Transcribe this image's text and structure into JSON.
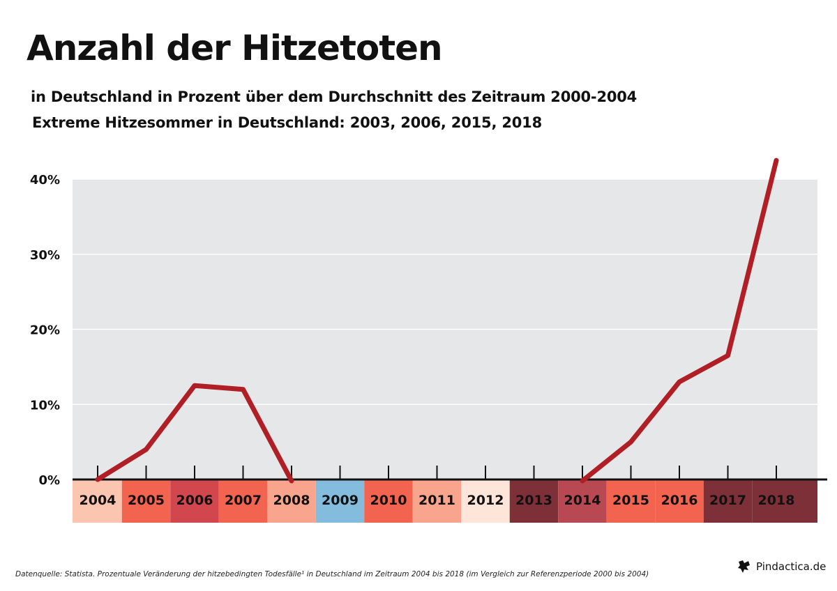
{
  "header": {
    "title": "Anzahl der Hitzetoten",
    "subtitle1": "in Deutschland in Prozent über dem Durchschnitt des Zeitraum 2000-2004",
    "subtitle2": "Extreme Hitzesommer in Deutschland: 2003, 2006, 2015, 2018"
  },
  "chart_data": {
    "type": "line",
    "x": [
      "2004",
      "2005",
      "2006",
      "2007",
      "2008",
      "2009",
      "2010",
      "2011",
      "2012",
      "2013",
      "2014",
      "2015",
      "2016",
      "2017",
      "2018"
    ],
    "series": [
      {
        "values": [
          0,
          4,
          12.5,
          12,
          -1,
          null,
          null,
          null,
          null,
          null,
          -1,
          5,
          13,
          16.5,
          42.5
        ]
      }
    ],
    "ylim": [
      0,
      40
    ],
    "yticks": [
      "0%",
      "10%",
      "20%",
      "30%",
      "40%"
    ],
    "grid": true,
    "line_color": "#B01F25",
    "plot_background": "#E6E7E8",
    "year_bar_colors": [
      "#FCC5B0",
      "#F26350",
      "#D2464E",
      "#F26350",
      "#F9A48C",
      "#84BCDD",
      "#F26350",
      "#F9A48C",
      "#FDE5DA",
      "#7E3038",
      "#B84952",
      "#F26350",
      "#F26350",
      "#7E3038",
      "#7E3038"
    ]
  },
  "footer": {
    "source": "Datenquelle: Statista. Prozentuale Veränderung der hitzebedingten Todesfälle¹ in Deutschland im Zeitraum 2004 bis 2018 (im Vergleich zur Referenzperiode 2000 bis 2004)",
    "brand": "Pindactica.de",
    "brand_icon": "pindactica-logo-icon"
  }
}
